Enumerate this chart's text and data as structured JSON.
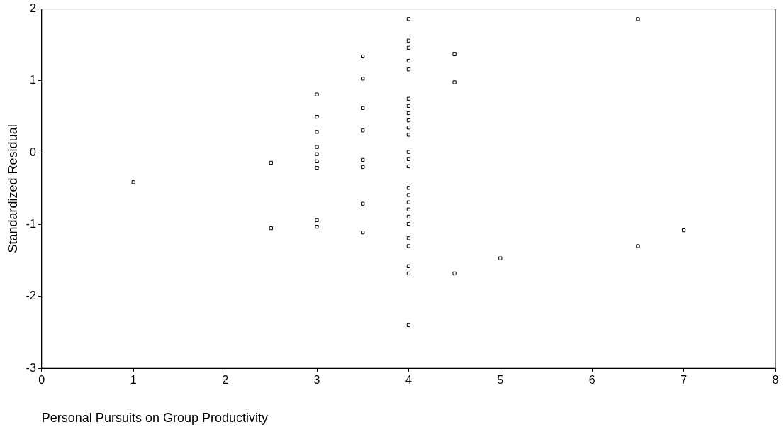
{
  "chart_data": {
    "type": "scatter",
    "xlabel": "Personal Pursuits on Group Productivity",
    "ylabel": "Standardized Residual",
    "xlim": [
      0,
      8
    ],
    "xticks": [
      0,
      1,
      2,
      3,
      4,
      5,
      6,
      7,
      8
    ],
    "ylim": [
      -3,
      2
    ],
    "yticks": [
      -3,
      -2,
      -1,
      0,
      1,
      2
    ],
    "grid": false,
    "legend": false,
    "marker": "square",
    "series": [
      {
        "color": "#000000",
        "x": [
          1,
          2.5,
          2.5,
          3,
          3,
          3,
          3,
          3,
          3,
          3,
          3,
          3,
          3.5,
          3.5,
          3.5,
          3.5,
          3.5,
          3.5,
          3.5,
          3.5,
          4,
          4,
          4,
          4,
          4,
          4,
          4,
          4,
          4,
          4,
          4,
          4,
          4,
          4,
          4,
          4,
          4,
          4,
          4,
          4,
          4,
          4,
          4,
          4,
          4,
          4.5,
          4.5,
          4.5,
          5,
          6.5,
          6.5,
          7
        ],
        "values": [
          -0.41,
          -0.14,
          -1.05,
          0.81,
          0.5,
          0.29,
          0.08,
          -0.02,
          -0.12,
          -0.21,
          -0.94,
          -1.03,
          1.34,
          1.03,
          0.62,
          0.31,
          -0.1,
          -0.2,
          -0.71,
          -1.11,
          1.86,
          1.56,
          1.46,
          1.28,
          1.16,
          0.75,
          0.65,
          0.55,
          0.45,
          0.35,
          0.25,
          0.01,
          -0.09,
          -0.19,
          -0.49,
          -0.59,
          -0.69,
          -0.79,
          -0.89,
          -0.99,
          -1.19,
          -1.3,
          -1.58,
          -1.68,
          -2.4,
          1.37,
          0.98,
          -1.68,
          -1.47,
          1.86,
          -1.3,
          -1.08
        ]
      }
    ]
  }
}
